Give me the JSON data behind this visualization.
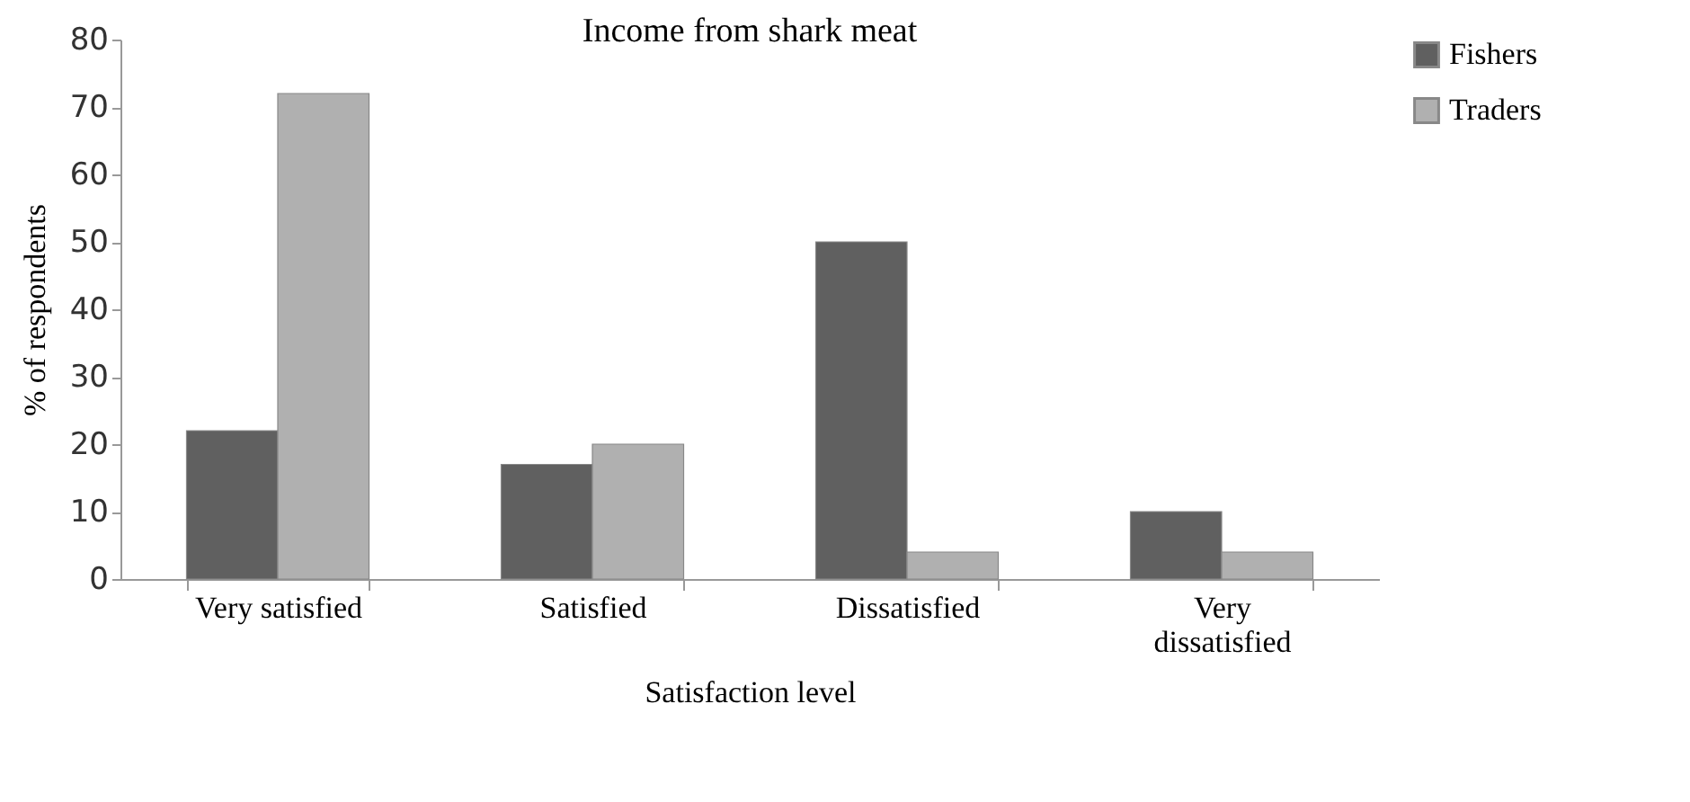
{
  "chart_data": {
    "type": "bar",
    "title": "Income from shark meat",
    "xlabel": "Satisfaction level",
    "ylabel": "% of respondents",
    "categories": [
      "Very satisfied",
      "Satisfied",
      "Dissatisfied",
      "Very dissatisfied"
    ],
    "series": [
      {
        "name": "Fishers",
        "color": "#606060",
        "values": [
          22,
          17,
          50,
          10
        ]
      },
      {
        "name": "Traders",
        "color": "#b0b0b0",
        "values": [
          72,
          20,
          4,
          4
        ]
      }
    ],
    "ylim": [
      0,
      80
    ],
    "yticks": [
      0,
      10,
      20,
      30,
      40,
      50,
      60,
      70,
      80
    ],
    "grid": false,
    "legend": "right"
  }
}
